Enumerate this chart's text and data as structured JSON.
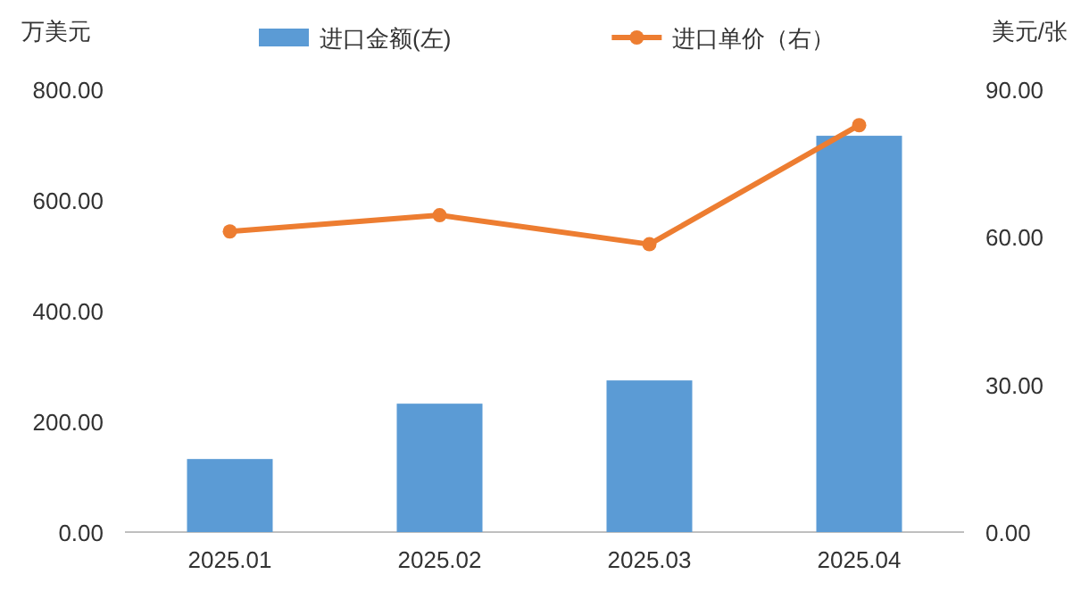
{
  "chart_data": {
    "type": "bar",
    "categories": [
      "2025.01",
      "2025.02",
      "2025.03",
      "2025.04"
    ],
    "series": [
      {
        "name": "进口金额(左)",
        "color": "#5b9bd5",
        "values": [
          132,
          232,
          274,
          716
        ]
      },
      {
        "name": "进口单价（右）",
        "type": "line",
        "axis": "y2",
        "color": "#ed7d31",
        "marker": "circle",
        "values": [
          61.1,
          64.4,
          58.5,
          82.7
        ]
      }
    ],
    "ylabel": "万美元",
    "y2label": "美元/张",
    "ylim": [
      0,
      800
    ],
    "yticks": [
      {
        "value": 0,
        "label": "0.00"
      },
      {
        "value": 200,
        "label": "200.00"
      },
      {
        "value": 400,
        "label": "400.00"
      },
      {
        "value": 600,
        "label": "600.00"
      },
      {
        "value": 800,
        "label": "800.00"
      }
    ],
    "y2lim": [
      0,
      90
    ],
    "y2ticks": [
      {
        "value": 0,
        "label": "0.00"
      },
      {
        "value": 30,
        "label": "30.00"
      },
      {
        "value": 60,
        "label": "60.00"
      },
      {
        "value": 90,
        "label": "90.00"
      }
    ],
    "legend": "top",
    "grid": false
  }
}
